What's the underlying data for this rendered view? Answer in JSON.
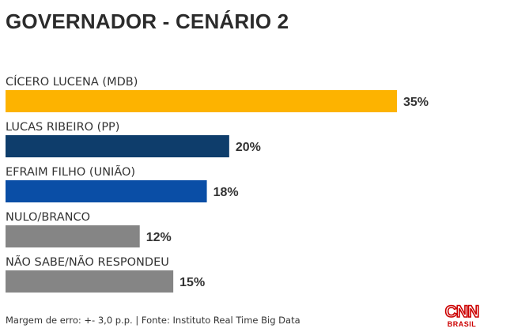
{
  "title": "GOVERNADOR - CENÁRIO 2",
  "chart_data": {
    "type": "bar",
    "orientation": "horizontal",
    "title": "GOVERNADOR - CENÁRIO 2",
    "categories": [
      "CÍCERO LUCENA (MDB)",
      "LUCAS RIBEIRO (PP)",
      "EFRAIM FILHO (UNIÃO)",
      "NULO/BRANCO",
      "NÃO SABE/NÃO RESPONDEU"
    ],
    "values": [
      35,
      20,
      18,
      12,
      15
    ],
    "value_labels": [
      "35%",
      "20%",
      "18%",
      "12%",
      "15%"
    ],
    "colors": [
      "#FDB300",
      "#0E3D6B",
      "#0A4EA6",
      "#858585",
      "#858585"
    ],
    "unit": "%",
    "xlim": [
      0,
      35
    ],
    "grid": false,
    "legend": "none"
  },
  "footnote": "Margem de erro: +- 3,0 p.p. | Fonte: Instituto Real Time Big Data",
  "logo": {
    "main": "CNN",
    "sub": "BRASIL",
    "icon": "cnn-brasil-logo",
    "color": "#CC0000"
  }
}
